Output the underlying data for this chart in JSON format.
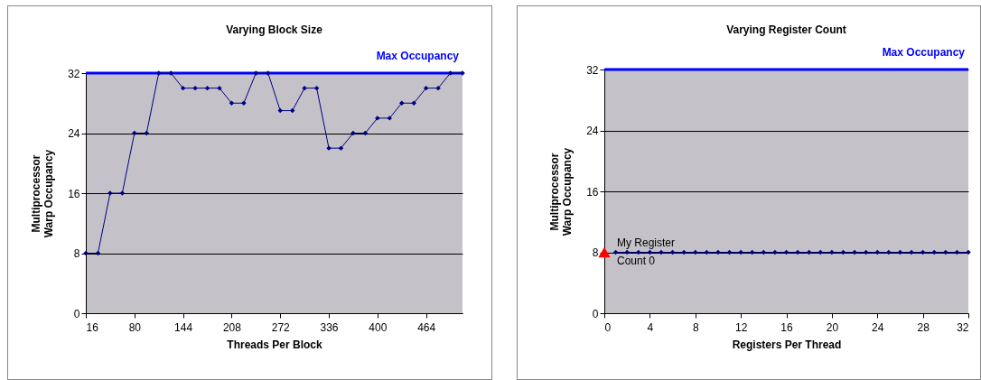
{
  "chart_data": [
    {
      "type": "line",
      "title": "Varying Block Size",
      "xlabel": "Threads Per Block",
      "ylabel": "Multiprocessor\nWarp Occupancy",
      "xlim": [
        16,
        512
      ],
      "xticks": [
        16,
        80,
        144,
        208,
        272,
        336,
        400,
        464
      ],
      "ylim": [
        0,
        32
      ],
      "yticks": [
        0,
        8,
        16,
        24,
        32
      ],
      "grid": "y",
      "marker": "diamond",
      "series": [
        {
          "color": "#000080",
          "x": [
            16,
            32,
            48,
            64,
            80,
            96,
            112,
            128,
            144,
            160,
            176,
            192,
            208,
            224,
            240,
            256,
            272,
            288,
            304,
            320,
            336,
            352,
            368,
            384,
            400,
            416,
            432,
            448,
            464,
            480,
            496,
            512
          ],
          "values": [
            8,
            8,
            16,
            16,
            24,
            24,
            32,
            32,
            30,
            30,
            30,
            30,
            28,
            28,
            32,
            32,
            27,
            27,
            30,
            30,
            22,
            22,
            24,
            24,
            26,
            26,
            28,
            28,
            30,
            30,
            32,
            32
          ]
        }
      ],
      "ref_lines": [
        {
          "axis": "y",
          "value": 32,
          "label": "Max Occupancy",
          "color": "#0000ff"
        }
      ]
    },
    {
      "type": "line",
      "title": "Varying Register Count",
      "xlabel": "Registers Per Thread",
      "ylabel": "Multiprocessor\nWarp Occupancy",
      "xlim": [
        0,
        32
      ],
      "xticks": [
        0,
        4,
        8,
        12,
        16,
        20,
        24,
        28,
        32
      ],
      "ylim": [
        0,
        32
      ],
      "yticks": [
        0,
        8,
        16,
        24,
        32
      ],
      "grid": "y",
      "marker": "diamond",
      "series": [
        {
          "color": "#000080",
          "x": [
            1,
            2,
            3,
            4,
            5,
            6,
            7,
            8,
            9,
            10,
            11,
            12,
            13,
            14,
            15,
            16,
            17,
            18,
            19,
            20,
            21,
            22,
            23,
            24,
            25,
            26,
            27,
            28,
            29,
            30,
            31,
            32
          ],
          "values": [
            8,
            8,
            8,
            8,
            8,
            8,
            8,
            8,
            8,
            8,
            8,
            8,
            8,
            8,
            8,
            8,
            8,
            8,
            8,
            8,
            8,
            8,
            8,
            8,
            8,
            8,
            8,
            8,
            8,
            8,
            8,
            8
          ]
        },
        {
          "type": "scatter",
          "marker": "triangle",
          "color": "#ff0000",
          "x": [
            0
          ],
          "values": [
            8
          ]
        }
      ],
      "ref_lines": [
        {
          "axis": "y",
          "value": 32,
          "label": "Max Occupancy",
          "color": "#0000ff"
        }
      ],
      "annotations": [
        {
          "text": "My Register\nCount 0",
          "x": 0,
          "y": 8
        }
      ]
    }
  ]
}
